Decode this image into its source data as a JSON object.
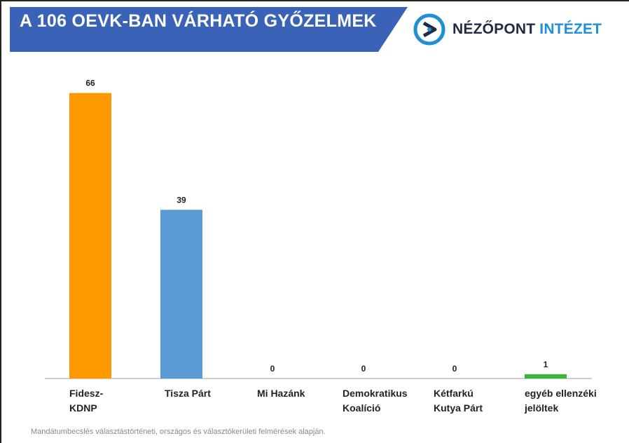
{
  "header": {
    "title": "A 106 OEVK-BAN VÁRHATÓ GYŐZELMEK",
    "banner_color": "#3a63b7"
  },
  "logo": {
    "word1": "NÉZŐPONT",
    "word2": "INTÉZET",
    "icon": "nezopont-logo-icon",
    "color_dark": "#1f2a44",
    "color_accent": "#1f8fd6"
  },
  "chart_data": {
    "type": "bar",
    "title": "",
    "xlabel": "",
    "ylabel": "",
    "ylim": [
      0,
      70
    ],
    "grid": false,
    "categories": [
      [
        "Fidesz-",
        "KDNP"
      ],
      [
        "Tisza Párt"
      ],
      [
        "Mi Hazánk"
      ],
      [
        "Demokratikus",
        "Koalíció"
      ],
      [
        "Kétfarkú",
        "Kutya Párt"
      ],
      [
        "egyéb ellenzéki",
        "jelöltek"
      ]
    ],
    "values": [
      66,
      39,
      0,
      0,
      0,
      1
    ],
    "colors": [
      "#ff9900",
      "#5b9bd5",
      "#a5a5a5",
      "#ffc000",
      "#4472c4",
      "#3cb43c"
    ]
  },
  "footnote": "Mandátumbecslés választástörténeti, országos és választókerületi felmérések alapján."
}
